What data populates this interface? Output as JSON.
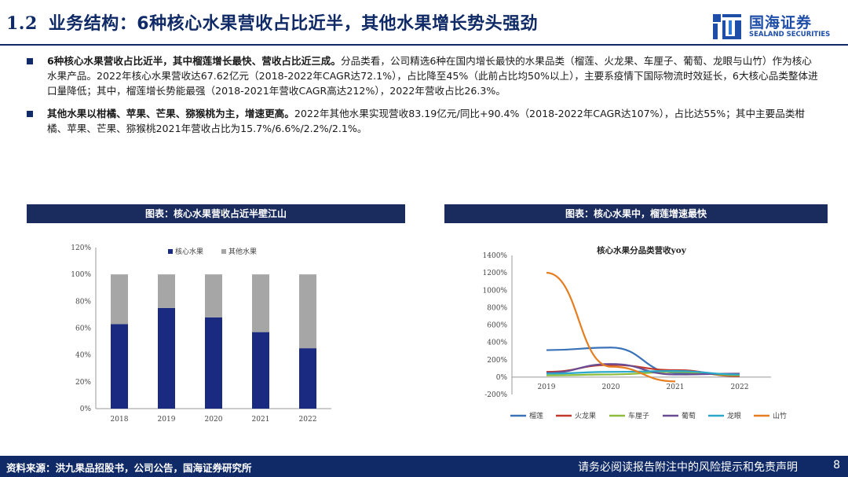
{
  "header": {
    "section_number": "1.2",
    "title": "业务结构：6种核心水果营收占比近半，其他水果增长势头强劲",
    "logo_cn": "国海证券",
    "logo_en": "SEALAND SECURITIES",
    "accent_color": "#0f2a66",
    "logo_color": "#1f4ea8"
  },
  "bullets": [
    {
      "bold": "6种核心水果营收占比近半，其中榴莲增长最快、营收占比近三成。",
      "text": "分品类看，公司精选6种在国内增长最快的水果品类（榴莲、火龙果、车厘子、葡萄、龙眼与山竹）作为核心水果产品。2022年核心水果营收达67.62亿元（2018-2022年CAGR达72.1%），占比降至45%（此前占比均50%以上），主要系疫情下国际物流时效延长，6大核心品类整体进口量降低；其中，榴莲增长势能最强（2018-2021年营收CAGR高达212%），2022年营收占比26.3%。"
    },
    {
      "bold": "其他水果以柑橘、苹果、芒果、猕猴桃为主，增速更高。",
      "text": "2022年其他水果实现营收83.19亿元/同比+90.4%（2018-2022年CAGR达107%），占比达55%；其中主要品类柑橘、苹果、芒果、猕猴桃2021年营收占比为15.7%/6.6%/2.2%/2.1%。"
    }
  ],
  "panel_left_title": "图表：核心水果营收占近半壁江山",
  "panel_right_title": "图表：核心水果中，榴莲增速最快",
  "chart_data": [
    {
      "type": "bar",
      "stacked": true,
      "title": "",
      "categories": [
        "2018",
        "2019",
        "2020",
        "2021",
        "2022"
      ],
      "series": [
        {
          "name": "核心水果",
          "values": [
            63,
            75,
            68,
            57,
            45
          ],
          "color": "#1a2a80"
        },
        {
          "name": "其他水果",
          "values": [
            37,
            25,
            32,
            43,
            55
          ],
          "color": "#a6a6a6"
        }
      ],
      "ylim": [
        0,
        120
      ],
      "yticks": [
        "0%",
        "20%",
        "40%",
        "60%",
        "80%",
        "100%",
        "120%"
      ],
      "legend": "top",
      "grid": false
    },
    {
      "type": "line",
      "title": "核心水果分品类营收yoy",
      "categories": [
        "2019",
        "2020",
        "2021",
        "2022"
      ],
      "series": [
        {
          "name": "榴莲",
          "values": [
            310,
            340,
            50,
            30
          ],
          "color": "#3a72b8"
        },
        {
          "name": "火龙果",
          "values": [
            60,
            140,
            80,
            10
          ],
          "color": "#c0392b"
        },
        {
          "name": "车厘子",
          "values": [
            20,
            30,
            60,
            20
          ],
          "color": "#8fbc3c"
        },
        {
          "name": "葡萄",
          "values": [
            50,
            150,
            30,
            40
          ],
          "color": "#6a4c93"
        },
        {
          "name": "龙眼",
          "values": [
            40,
            60,
            70,
            30
          ],
          "color": "#2aa7c9"
        },
        {
          "name": "山竹",
          "values": [
            1200,
            120,
            -50,
            null
          ],
          "color": "#e67e22"
        }
      ],
      "ylim": [
        -200,
        1400
      ],
      "yticks": [
        "-200%",
        "0%",
        "200%",
        "400%",
        "600%",
        "800%",
        "1000%",
        "1200%",
        "1400%"
      ],
      "legend": "bottom",
      "grid": false
    }
  ],
  "footer": {
    "source": "资料来源：洪九果品招股书，公司公告，国海证券研究所",
    "disclaimer": "请务必阅读报告附注中的风险提示和免责声明",
    "page": "8"
  }
}
